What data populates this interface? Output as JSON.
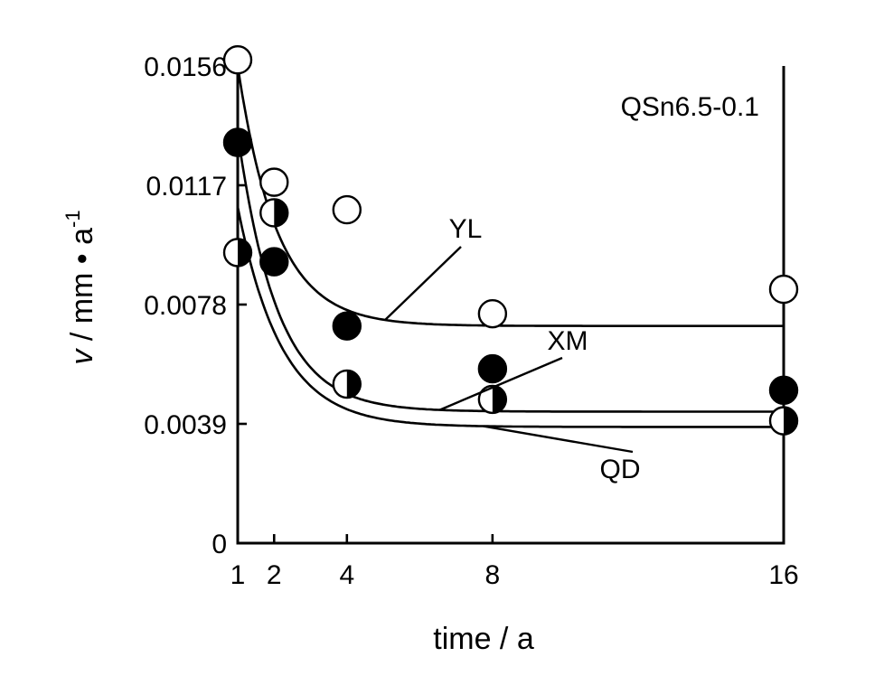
{
  "chart_data": {
    "type": "scatter",
    "annotation": "QSn6.5-0.1",
    "xlabel": "time / a",
    "ylabel": {
      "symbol": "v",
      "unit_prefix": " / mm • a",
      "unit_exp": "-1"
    },
    "x_ticks": [
      1,
      2,
      4,
      8,
      16
    ],
    "x_tick_labels": [
      "1",
      "2",
      "4",
      "8",
      "16"
    ],
    "xlim": [
      1,
      16
    ],
    "y_ticks": [
      0,
      0.0039,
      0.0078,
      0.0117,
      0.0156
    ],
    "y_tick_labels": [
      "0",
      "0.0039",
      "0.0078",
      "0.0117",
      "0.0156"
    ],
    "ylim": [
      0,
      0.0156
    ],
    "grid": false,
    "legend": "none",
    "series": [
      {
        "name": "YL",
        "marker": "open",
        "x": [
          1,
          2,
          4,
          8,
          16
        ],
        "y": [
          0.0158,
          0.0118,
          0.0109,
          0.0075,
          0.0083
        ],
        "fit_a": 0.0156,
        "fit_k": 0.93,
        "fit_c": 0.0071
      },
      {
        "name": "XM",
        "marker": "filled",
        "x": [
          1,
          2,
          4,
          8,
          16
        ],
        "y": [
          0.0131,
          0.0092,
          0.0071,
          0.0057,
          0.005
        ],
        "fit_a": 0.0134,
        "fit_k": 0.92,
        "fit_c": 0.0043
      },
      {
        "name": "QD",
        "marker": "half",
        "x": [
          1,
          2,
          4,
          8,
          16
        ],
        "y": [
          0.0095,
          0.0108,
          0.0052,
          0.0047,
          0.004
        ],
        "fit_a": 0.011,
        "fit_k": 0.84,
        "fit_c": 0.0038
      }
    ]
  }
}
